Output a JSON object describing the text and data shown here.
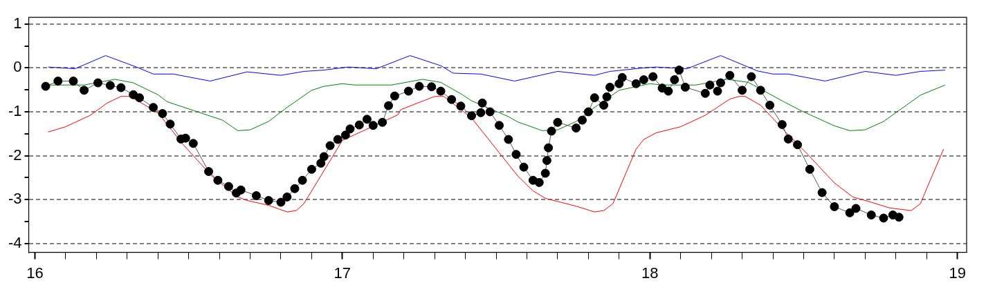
{
  "chart_data": {
    "type": "line",
    "xlim": [
      15.98,
      19.03
    ],
    "ylim": [
      -4.2,
      1.15
    ],
    "xticks": [
      16,
      {
        "value": 16.1,
        "label": null
      },
      {
        "value": 16.2,
        "label": null
      },
      {
        "value": 16.3,
        "label": null
      },
      {
        "value": 16.4,
        "label": null
      },
      {
        "value": 16.5,
        "label": null
      },
      {
        "value": 16.6,
        "label": null
      },
      {
        "value": 16.7,
        "label": null
      },
      {
        "value": 16.8,
        "label": null
      },
      {
        "value": 16.9,
        "label": null
      },
      17,
      {
        "value": 17.1,
        "label": null
      },
      {
        "value": 17.2,
        "label": null
      },
      {
        "value": 17.3,
        "label": null
      },
      {
        "value": 17.4,
        "label": null
      },
      {
        "value": 17.5,
        "label": null
      },
      {
        "value": 17.6,
        "label": null
      },
      {
        "value": 17.7,
        "label": null
      },
      {
        "value": 17.8,
        "label": null
      },
      {
        "value": 17.9,
        "label": null
      },
      18,
      {
        "value": 18.1,
        "label": null
      },
      {
        "value": 18.2,
        "label": null
      },
      {
        "value": 18.3,
        "label": null
      },
      {
        "value": 18.4,
        "label": null
      },
      {
        "value": 18.5,
        "label": null
      },
      {
        "value": 18.6,
        "label": null
      },
      {
        "value": 18.7,
        "label": null
      },
      {
        "value": 18.8,
        "label": null
      },
      {
        "value": 18.9,
        "label": null
      },
      19
    ],
    "yticks": [
      -4,
      {
        "value": -3.5,
        "label": null
      },
      -3,
      {
        "value": -2.5,
        "label": null
      },
      -2,
      {
        "value": -1.5,
        "label": null
      },
      -1,
      {
        "value": -0.5,
        "label": null
      },
      0,
      {
        "value": 0.5,
        "label": null
      },
      1
    ],
    "grid": "y",
    "series": [
      {
        "color": "#0000ff",
        "marker": "none",
        "x": [
          16.043,
          16.13,
          16.23,
          16.33,
          16.385,
          16.45,
          16.57,
          16.69,
          16.8,
          16.875,
          16.94,
          17.02,
          17.11,
          17.22,
          17.32,
          17.36,
          17.45,
          17.56,
          17.7,
          17.82,
          17.87,
          17.98,
          18.02,
          18.12,
          18.23,
          18.35,
          18.4,
          18.45,
          18.57,
          18.7,
          18.8,
          18.88,
          18.96
        ],
        "values": [
          0.02,
          -0.02,
          0.28,
          0.02,
          -0.14,
          -0.14,
          -0.3,
          -0.09,
          -0.17,
          -0.08,
          -0.05,
          0.02,
          -0.02,
          0.28,
          0.05,
          -0.12,
          -0.14,
          -0.3,
          -0.08,
          -0.17,
          -0.08,
          0.0,
          0.02,
          -0.02,
          0.28,
          -0.07,
          -0.14,
          -0.14,
          -0.3,
          -0.08,
          -0.17,
          -0.08,
          -0.05
        ]
      },
      {
        "color": "#008000",
        "marker": "none",
        "x": [
          16.043,
          16.16,
          16.26,
          16.32,
          16.4,
          16.43,
          16.61,
          16.66,
          16.7,
          16.76,
          16.81,
          16.9,
          16.94,
          17.0,
          17.04,
          17.16,
          17.26,
          17.32,
          17.39,
          17.42,
          17.54,
          17.57,
          17.65,
          17.7,
          17.76,
          17.81,
          17.9,
          18.0,
          18.04,
          18.15,
          18.25,
          18.32,
          18.43,
          18.49,
          18.6,
          18.65,
          18.7,
          18.76,
          18.81,
          18.88,
          18.96
        ],
        "values": [
          -0.39,
          -0.39,
          -0.26,
          -0.34,
          -0.61,
          -0.77,
          -1.19,
          -1.43,
          -1.41,
          -1.22,
          -0.95,
          -0.51,
          -0.42,
          -0.36,
          -0.39,
          -0.39,
          -0.26,
          -0.33,
          -0.61,
          -0.75,
          -1.11,
          -1.23,
          -1.43,
          -1.41,
          -1.22,
          -0.95,
          -0.51,
          -0.36,
          -0.39,
          -0.39,
          -0.26,
          -0.33,
          -0.75,
          -0.97,
          -1.32,
          -1.43,
          -1.41,
          -1.22,
          -0.97,
          -0.62,
          -0.39
        ]
      },
      {
        "color": "#ff0000",
        "marker": "none",
        "x": [
          16.043,
          16.1,
          16.18,
          16.235,
          16.28,
          16.31,
          16.4,
          16.48,
          16.575,
          16.66,
          16.69,
          16.76,
          16.82,
          16.85,
          16.875,
          16.93,
          17.0,
          17.1,
          17.18,
          17.19,
          17.3,
          17.33,
          17.42,
          17.52,
          17.57,
          17.62,
          17.66,
          17.76,
          17.82,
          17.85,
          17.88,
          17.955,
          17.98,
          18.02,
          18.1,
          18.18,
          18.26,
          18.29,
          18.31,
          18.36,
          18.44,
          18.52,
          18.6,
          18.66,
          18.72,
          18.78,
          18.85,
          18.88,
          18.9,
          18.955
        ],
        "values": [
          -1.46,
          -1.34,
          -1.08,
          -0.8,
          -0.65,
          -0.65,
          -1.02,
          -1.73,
          -2.46,
          -2.94,
          -3.02,
          -3.13,
          -3.28,
          -3.25,
          -3.09,
          null,
          -1.65,
          null,
          -1.07,
          -0.95,
          -0.65,
          -0.65,
          -1.14,
          -2.02,
          -2.46,
          -2.8,
          -2.97,
          -3.15,
          -3.28,
          -3.25,
          -3.09,
          -1.85,
          -1.63,
          -1.48,
          -1.34,
          -1.08,
          -0.71,
          -0.65,
          -0.65,
          -0.85,
          -1.45,
          -2.02,
          -2.62,
          -2.94,
          -3.06,
          -3.19,
          -3.25,
          -3.09,
          -2.75,
          -1.85
        ]
      },
      {
        "color": "#000000",
        "marker": "circle",
        "x": [
          16.035,
          16.075,
          16.125,
          16.16,
          16.205,
          16.245,
          16.28,
          16.32,
          16.34,
          16.385,
          16.415,
          16.44,
          16.475,
          16.49,
          16.515,
          16.565,
          16.595,
          16.63,
          16.655,
          16.67,
          16.72,
          16.76,
          16.8,
          16.82,
          16.845,
          16.87,
          16.9,
          16.93,
          16.94,
          16.96,
          16.985,
          17.01,
          17.025,
          17.055,
          17.08,
          17.1,
          17.13,
          17.15,
          17.17,
          17.215,
          17.25,
          17.29,
          17.32,
          17.355,
          17.385,
          17.42,
          17.45,
          17.455,
          17.48,
          17.51,
          17.54,
          17.565,
          17.59,
          17.62,
          17.64,
          17.66,
          17.665,
          17.67,
          17.68,
          17.7,
          17.76,
          17.78,
          17.8,
          17.82,
          17.85,
          17.86,
          17.87,
          17.9,
          17.91,
          17.955,
          17.98,
          18.01,
          18.04,
          18.06,
          18.08,
          18.095,
          18.115,
          18.18,
          18.195,
          18.22,
          18.23,
          18.26,
          18.3,
          18.33,
          18.36,
          18.39,
          18.43,
          18.45,
          18.48,
          18.52,
          18.56,
          18.6,
          18.65,
          18.67,
          18.72,
          18.76,
          18.79,
          18.81
        ],
        "values": [
          -0.42,
          -0.3,
          -0.3,
          -0.51,
          -0.34,
          -0.4,
          -0.45,
          -0.61,
          -0.68,
          -0.9,
          -1.04,
          -1.28,
          -1.62,
          -1.6,
          -1.72,
          -2.36,
          -2.56,
          -2.7,
          -2.85,
          -2.78,
          -2.91,
          -3.02,
          -3.06,
          -2.94,
          -2.75,
          -2.56,
          -2.31,
          -2.17,
          -2.02,
          -1.77,
          -1.63,
          -1.53,
          -1.39,
          -1.3,
          -1.17,
          -1.31,
          -1.24,
          -0.86,
          -0.64,
          -0.53,
          -0.42,
          -0.43,
          -0.53,
          -0.72,
          -0.87,
          -1.09,
          -1.02,
          -0.8,
          -1.0,
          -1.31,
          -1.63,
          -1.97,
          -2.26,
          -2.56,
          -2.61,
          -2.4,
          -2.11,
          -1.82,
          -1.44,
          -1.24,
          -1.37,
          -1.19,
          -1.0,
          -0.68,
          -0.85,
          -0.66,
          -0.44,
          -0.36,
          -0.22,
          -0.36,
          -0.27,
          -0.2,
          -0.46,
          -0.53,
          -0.27,
          -0.05,
          -0.44,
          -0.58,
          -0.39,
          -0.53,
          -0.34,
          -0.17,
          -0.51,
          -0.2,
          -0.51,
          -0.85,
          -1.29,
          -1.62,
          -1.75,
          -2.31,
          -2.84,
          -3.16,
          -3.3,
          -3.2,
          -3.35,
          -3.42,
          -3.35,
          -3.4
        ]
      }
    ]
  }
}
